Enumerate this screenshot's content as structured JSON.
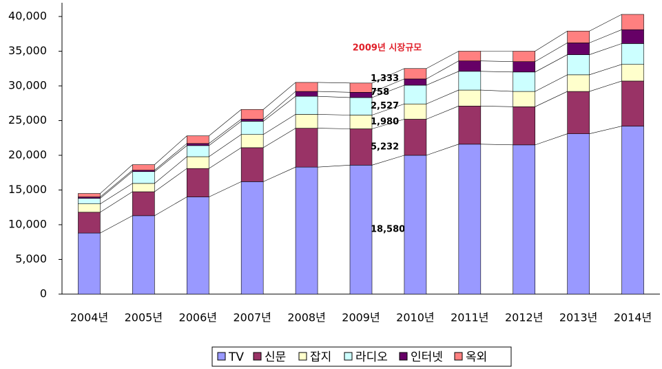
{
  "chart_data": {
    "type": "stacked_bar",
    "annotation": "2009년 시장규모",
    "categories": [
      "2004년",
      "2005년",
      "2006년",
      "2007년",
      "2008년",
      "2009년",
      "2010년",
      "2011년",
      "2012년",
      "2013년",
      "2014년"
    ],
    "series": [
      {
        "name": "TV",
        "color": "#9999ff",
        "values": [
          8800,
          11300,
          14000,
          16200,
          18300,
          18580,
          20000,
          21600,
          21500,
          23100,
          24200
        ],
        "value_labels": [
          null,
          null,
          null,
          null,
          null,
          "18,580",
          null,
          null,
          null,
          null,
          null
        ]
      },
      {
        "name": "신문",
        "color": "#993366",
        "values": [
          3000,
          3450,
          4100,
          4900,
          5600,
          5232,
          5200,
          5500,
          5500,
          6100,
          6500
        ],
        "value_labels": [
          null,
          null,
          null,
          null,
          null,
          "5,232",
          null,
          null,
          null,
          null,
          null
        ]
      },
      {
        "name": "잡지",
        "color": "#ffffcc",
        "values": [
          1200,
          1200,
          1700,
          1900,
          2000,
          1980,
          2200,
          2300,
          2200,
          2400,
          2400
        ],
        "value_labels": [
          null,
          null,
          null,
          null,
          null,
          "1,980",
          null,
          null,
          null,
          null,
          null
        ]
      },
      {
        "name": "라디오",
        "color": "#ccffff",
        "values": [
          800,
          1700,
          1600,
          1900,
          2600,
          2527,
          2700,
          2700,
          2800,
          2900,
          3000
        ],
        "value_labels": [
          null,
          null,
          null,
          null,
          null,
          "2,527",
          null,
          null,
          null,
          null,
          null
        ]
      },
      {
        "name": "인터넷",
        "color": "#660066",
        "values": [
          200,
          200,
          300,
          300,
          700,
          758,
          900,
          1500,
          1500,
          1700,
          2000
        ],
        "value_labels": [
          null,
          null,
          null,
          null,
          null,
          "758",
          null,
          null,
          null,
          null,
          null
        ]
      },
      {
        "name": "옥외",
        "color": "#ff8080",
        "values": [
          500,
          800,
          1100,
          1400,
          1300,
          1333,
          1500,
          1400,
          1500,
          1700,
          2200
        ],
        "value_labels": [
          null,
          null,
          null,
          null,
          null,
          "1,333",
          null,
          null,
          null,
          null,
          null
        ]
      }
    ],
    "ylim": [
      0,
      40000
    ],
    "yticks": [
      0,
      {
        "value": 5000,
        "label": "5,000"
      },
      {
        "value": 10000,
        "label": "10,000"
      },
      {
        "value": 15000,
        "label": "15,000"
      },
      {
        "value": 20000,
        "label": "20,000"
      },
      {
        "value": 25000,
        "label": "25,000"
      },
      {
        "value": 30000,
        "label": "30,000"
      },
      {
        "value": 35000,
        "label": "35,000"
      },
      {
        "value": 40000,
        "label": "40,000"
      }
    ],
    "legend": "bottom"
  }
}
